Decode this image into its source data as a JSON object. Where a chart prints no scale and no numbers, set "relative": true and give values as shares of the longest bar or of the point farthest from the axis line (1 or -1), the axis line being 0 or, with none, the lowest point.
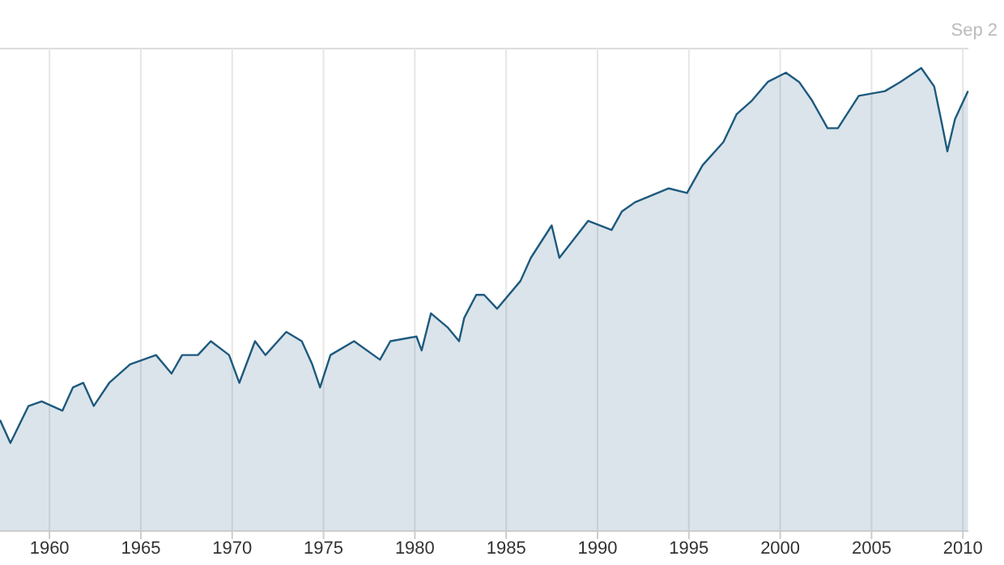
{
  "chart_data": {
    "type": "area",
    "relative": true,
    "annotations": [
      "Sep 2"
    ],
    "grid": "x",
    "xlim": [
      1957.29,
      2010.3
    ],
    "xticks": [
      1960,
      1965,
      1970,
      1975,
      1980,
      1985,
      1990,
      1995,
      2000,
      2005,
      2010
    ],
    "x": [
      1957.29,
      1957.86,
      1958.85,
      1959.57,
      1960.71,
      1961.28,
      1961.85,
      1962.42,
      1963.27,
      1964.41,
      1965.83,
      1966.68,
      1967.26,
      1968.12,
      1968.83,
      1969.83,
      1970.39,
      1971.25,
      1971.82,
      1972.96,
      1973.81,
      1974.38,
      1974.81,
      1975.38,
      1976.67,
      1978.09,
      1978.66,
      1980.09,
      1980.37,
      1980.88,
      1981.79,
      1982.42,
      1982.7,
      1983.36,
      1983.79,
      1984.5,
      1985.78,
      1986.35,
      1987.49,
      1987.91,
      1989.49,
      1990.77,
      1991.33,
      1992.05,
      1993.9,
      1994.9,
      1995.75,
      1996.89,
      1997.61,
      1998.46,
      1999.32,
      2000.31,
      2001.03,
      2001.74,
      2002.59,
      2003.16,
      2004.3,
      2005.73,
      2006.58,
      2007.72,
      2008.43,
      2008.85,
      2009.15,
      2009.57,
      2010.28
    ],
    "series": [
      {
        "color": "#1d5a7e",
        "values": [
          0.24,
          0.19,
          0.27,
          0.28,
          0.26,
          0.31,
          0.32,
          0.27,
          0.32,
          0.36,
          0.38,
          0.34,
          0.38,
          0.38,
          0.41,
          0.38,
          0.32,
          0.41,
          0.38,
          0.43,
          0.41,
          0.36,
          0.31,
          0.38,
          0.41,
          0.37,
          0.41,
          0.42,
          0.39,
          0.47,
          0.44,
          0.41,
          0.46,
          0.51,
          0.51,
          0.48,
          0.54,
          0.59,
          0.66,
          0.59,
          0.67,
          0.65,
          0.69,
          0.71,
          0.74,
          0.73,
          0.79,
          0.84,
          0.9,
          0.93,
          0.97,
          0.99,
          0.97,
          0.93,
          0.87,
          0.87,
          0.94,
          0.95,
          0.97,
          1,
          0.96,
          0.88,
          0.82,
          0.89,
          0.95
        ]
      }
    ]
  }
}
